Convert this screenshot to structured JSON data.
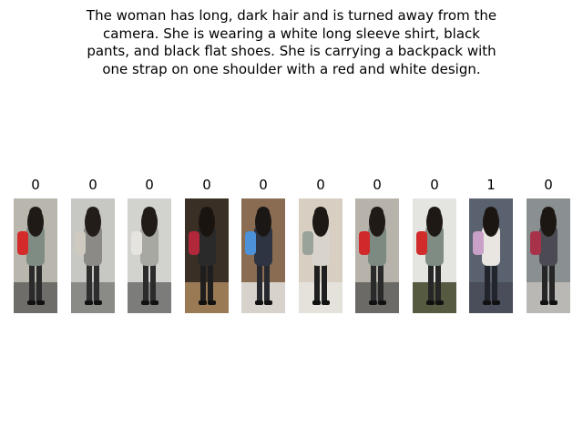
{
  "caption": {
    "lines": [
      "The woman has long, dark hair and is turned away from the",
      "camera. She is wearing a white long sleeve shirt, black",
      "pants, and black flat shoes. She is carrying a backpack with",
      "one strap on one shoulder with a red and white design."
    ]
  },
  "gallery": {
    "items": [
      {
        "label": "0",
        "bg": "#b9b6ae",
        "floor": "#6f6d69",
        "top": "#7f8c84",
        "pants": "#2a2a2a",
        "bag": "#d42a2a",
        "hair": "#201a16"
      },
      {
        "label": "0",
        "bg": "#c7c7c3",
        "floor": "#8a8a86",
        "top": "#8c8a86",
        "pants": "#2e2e2e",
        "bag": "#cfcac0",
        "hair": "#231d19"
      },
      {
        "label": "0",
        "bg": "#d2d3cf",
        "floor": "#7c7d7a",
        "top": "#a8a8a2",
        "pants": "#2c2c2c",
        "bag": "#e6e4de",
        "hair": "#221c18"
      },
      {
        "label": "0",
        "bg": "#3a2f24",
        "floor": "#9a7a55",
        "top": "#2a2a2a",
        "pants": "#1e1e1e",
        "bag": "#b0283a",
        "hair": "#1a1410"
      },
      {
        "label": "0",
        "bg": "#8a6c52",
        "floor": "#d8d2cc",
        "top": "#2e3442",
        "pants": "#27292e",
        "bag": "#4d92d8",
        "hair": "#1b1714"
      },
      {
        "label": "0",
        "bg": "#d8cfc2",
        "floor": "#e5e2dc",
        "top": "#d8d4cc",
        "pants": "#1f1f1f",
        "bag": "#9aa39a",
        "hair": "#1e1915"
      },
      {
        "label": "0",
        "bg": "#b7b3aa",
        "floor": "#6c6a66",
        "top": "#7d8a82",
        "pants": "#2a2a2a",
        "bag": "#d0282b",
        "hair": "#201a16"
      },
      {
        "label": "0",
        "bg": "#e4e4e0",
        "floor": "#555a40",
        "top": "#7e8c83",
        "pants": "#262626",
        "bag": "#d22b2b",
        "hair": "#1f1915"
      },
      {
        "label": "1",
        "bg": "#5a6270",
        "floor": "#4a4e5a",
        "top": "#e9e6e2",
        "pants": "#23252d",
        "bag": "#c8a0c8",
        "hair": "#1b1612"
      },
      {
        "label": "0",
        "bg": "#8a8f92",
        "floor": "#b9b8b4",
        "top": "#4c4a52",
        "pants": "#262626",
        "bag": "#a8324a",
        "hair": "#1c1713"
      }
    ]
  }
}
